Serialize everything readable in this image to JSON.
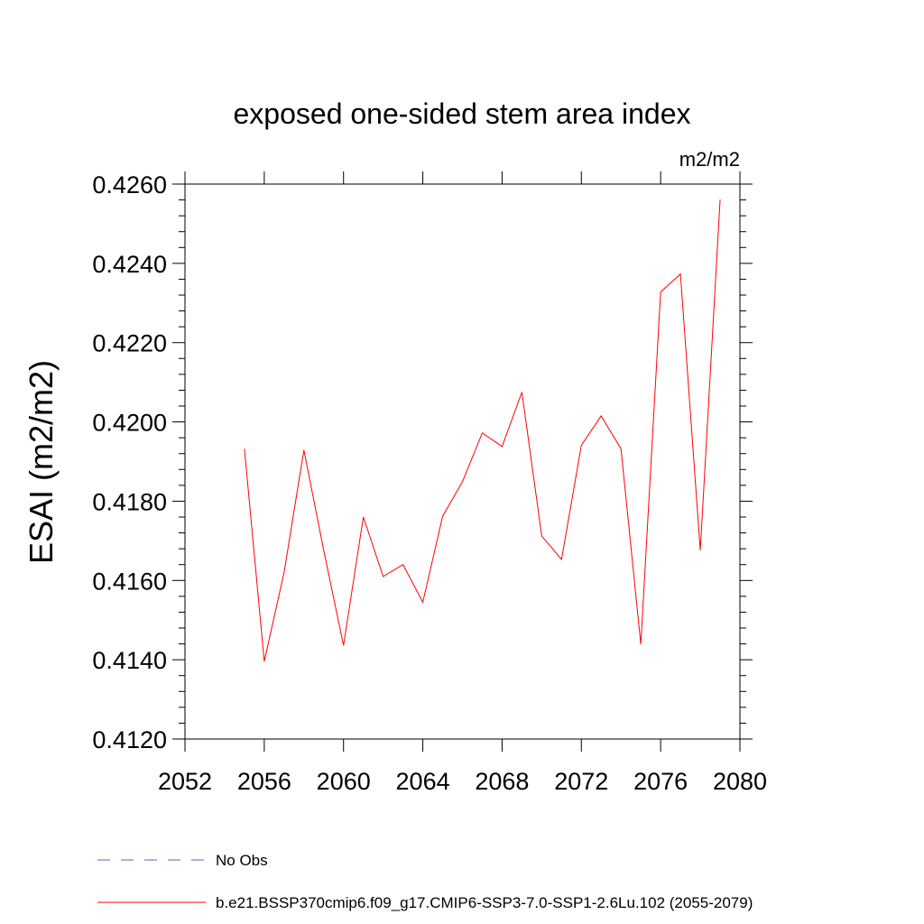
{
  "chart_data": {
    "type": "line",
    "title": "exposed one-sided stem area index",
    "units_label": "m2/m2",
    "xlabel": "",
    "ylabel": "ESAI  (m2/m2)",
    "xlim": [
      2052,
      2080
    ],
    "ylim": [
      0.412,
      0.426
    ],
    "x_ticks": [
      "2052",
      "2056",
      "2060",
      "2064",
      "2068",
      "2072",
      "2076",
      "2080"
    ],
    "y_ticks": [
      "0.4120",
      "0.4140",
      "0.4160",
      "0.4180",
      "0.4200",
      "0.4220",
      "0.4240",
      "0.4260"
    ],
    "grid": false,
    "legend_position": "bottom",
    "series": [
      {
        "name": "b.e21.BSSP370cmip6.f09_g17.CMIP6-SSP3-7.0-SSP1-2.6Lu.102 (2055-2079)",
        "color": "#ff0000",
        "style": "solid",
        "x": [
          2055,
          2056,
          2057,
          2058,
          2059,
          2060,
          2061,
          2062,
          2063,
          2064,
          2065,
          2066,
          2067,
          2068,
          2069,
          2070,
          2071,
          2072,
          2073,
          2074,
          2075,
          2076,
          2077,
          2078,
          2079
        ],
        "y": [
          0.41932,
          0.41396,
          0.4162,
          0.41929,
          0.41676,
          0.41436,
          0.4176,
          0.4161,
          0.4164,
          0.41545,
          0.41762,
          0.41849,
          0.41972,
          0.41938,
          0.42075,
          0.41712,
          0.41653,
          0.41941,
          0.42015,
          0.41932,
          0.41439,
          0.42328,
          0.42373,
          0.41676,
          0.42561
        ]
      }
    ],
    "legend": [
      {
        "label": "No Obs",
        "color": "#6a5acd",
        "style": "dashed"
      },
      {
        "label": "b.e21.BSSP370cmip6.f09_g17.CMIP6-SSP3-7.0-SSP1-2.6Lu.102 (2055-2079)",
        "color": "#ff0000",
        "style": "solid"
      }
    ]
  }
}
